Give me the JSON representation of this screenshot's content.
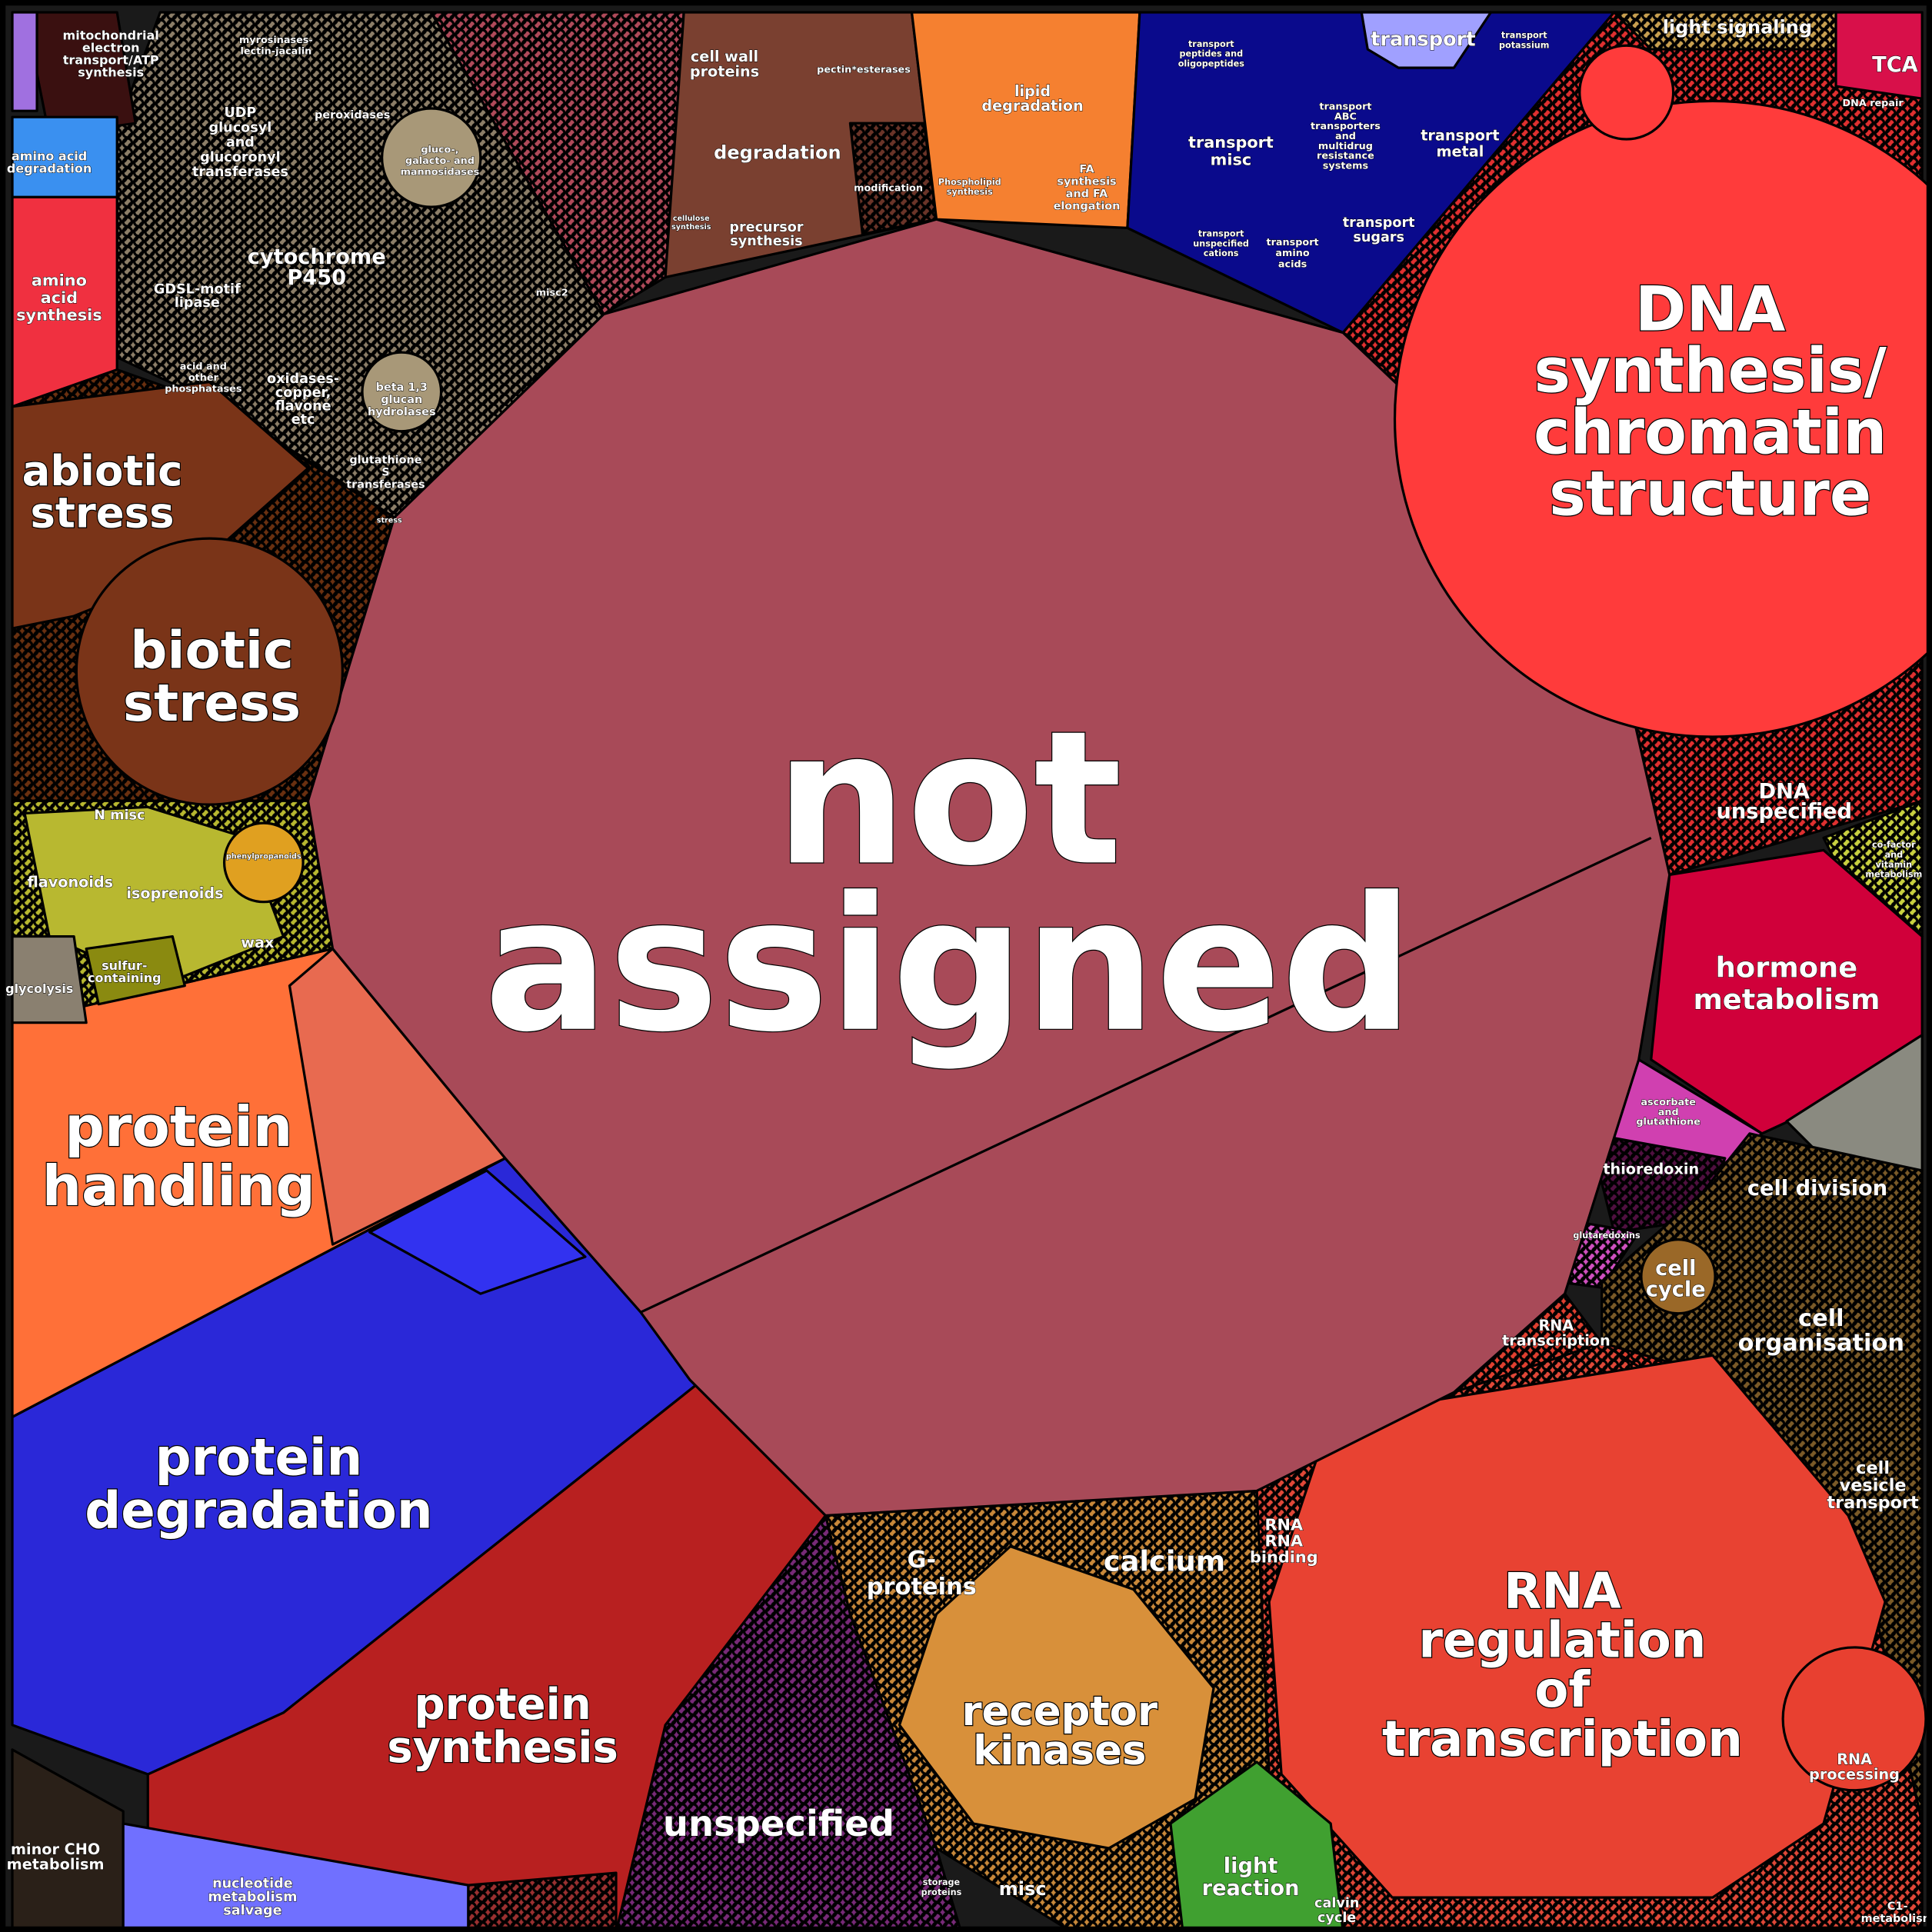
{
  "title": "Voronoi treemap of functional categories",
  "cells": [
    {
      "lines": [
        "not",
        "assigned"
      ]
    },
    {
      "lines": [
        "DNA",
        "synthesis/",
        "chromatin",
        "structure"
      ]
    },
    {
      "lines": [
        "DNA",
        "unspecified"
      ]
    },
    {
      "lines": [
        "hormone",
        "metabolism"
      ]
    },
    {
      "lines": [
        "cell division"
      ]
    },
    {
      "lines": [
        "cell",
        "cycle"
      ]
    },
    {
      "lines": [
        "cell",
        "organisation"
      ]
    },
    {
      "lines": [
        "cell",
        "vesicle",
        "transport"
      ]
    },
    {
      "lines": [
        "RNA",
        "regulation",
        "of",
        "transcription"
      ]
    },
    {
      "lines": [
        "RNA",
        "transcription"
      ]
    },
    {
      "lines": [
        "RNA",
        "RNA",
        "binding"
      ]
    },
    {
      "lines": [
        "RNA",
        "processing"
      ]
    },
    {
      "lines": [
        "receptor",
        "kinases"
      ]
    },
    {
      "lines": [
        "calcium"
      ]
    },
    {
      "lines": [
        "G-",
        "proteins"
      ]
    },
    {
      "lines": [
        "unspecified"
      ]
    },
    {
      "lines": [
        "misc"
      ]
    },
    {
      "lines": [
        "light",
        "reaction"
      ]
    },
    {
      "lines": [
        "calvin",
        "cycle"
      ]
    },
    {
      "lines": [
        "protein",
        "synthesis"
      ]
    },
    {
      "lines": [
        "protein",
        "degradation"
      ]
    },
    {
      "lines": [
        "protein",
        "handling"
      ]
    },
    {
      "lines": [
        "minor CHO",
        "metabolism"
      ]
    },
    {
      "lines": [
        "nucleotide",
        "metabolism",
        "salvage"
      ]
    },
    {
      "lines": [
        "flavonoids"
      ]
    },
    {
      "lines": [
        "isoprenoids"
      ]
    },
    {
      "lines": [
        "N misc"
      ]
    },
    {
      "lines": [
        "wax"
      ]
    },
    {
      "lines": [
        "sulfur-",
        "containing"
      ]
    },
    {
      "lines": [
        "phenylpropanoids"
      ]
    },
    {
      "lines": [
        "glycolysis"
      ]
    },
    {
      "lines": [
        "biotic",
        "stress"
      ]
    },
    {
      "lines": [
        "abiotic",
        "stress"
      ]
    },
    {
      "lines": [
        "amino",
        "acid",
        "synthesis"
      ]
    },
    {
      "lines": [
        "amino acid",
        "degradation"
      ]
    },
    {
      "lines": [
        "mitochondrial",
        "electron",
        "transport/ATP",
        "synthesis"
      ]
    },
    {
      "lines": [
        "cytochrome",
        "P450"
      ]
    },
    {
      "lines": [
        "UDP",
        "glucosyl",
        "and",
        "glucoronyl",
        "transferases"
      ]
    },
    {
      "lines": [
        "peroxidases"
      ]
    },
    {
      "lines": [
        "GDSL-motif",
        "lipase"
      ]
    },
    {
      "lines": [
        "oxidases-",
        "copper,",
        "flavone",
        "etc"
      ]
    },
    {
      "lines": [
        "glutathione",
        "S",
        "transferases"
      ]
    },
    {
      "lines": [
        "beta 1,3",
        "glucan",
        "hydrolases"
      ]
    },
    {
      "lines": [
        "myrosinases-",
        "lectin-jacalin"
      ]
    },
    {
      "lines": [
        "gluco-,",
        "galacto- and",
        "mannosidases"
      ]
    },
    {
      "lines": [
        "acid and",
        "other",
        "phosphatases"
      ]
    },
    {
      "lines": [
        "cell wall",
        "proteins"
      ]
    },
    {
      "lines": [
        "degradation"
      ]
    },
    {
      "lines": [
        "precursor",
        "synthesis"
      ]
    },
    {
      "lines": [
        "modification"
      ]
    },
    {
      "lines": [
        "pectin*esterases"
      ]
    },
    {
      "lines": [
        "cellulose",
        "synthesis"
      ]
    },
    {
      "lines": [
        "lipid",
        "degradation"
      ]
    },
    {
      "lines": [
        "FA",
        "synthesis",
        "and FA",
        "elongation"
      ]
    },
    {
      "lines": [
        "Phospholipid",
        "synthesis"
      ]
    },
    {
      "lines": [
        "transport"
      ]
    },
    {
      "lines": [
        "transport",
        "misc"
      ]
    },
    {
      "lines": [
        "transport",
        "metal"
      ]
    },
    {
      "lines": [
        "transport",
        "sugars"
      ]
    },
    {
      "lines": [
        "transport",
        "ABC",
        "transporters",
        "and",
        "multidrug",
        "resistance",
        "systems"
      ]
    },
    {
      "lines": [
        "transport",
        "amino",
        "acids"
      ]
    },
    {
      "lines": [
        "transport",
        "unspecified",
        "cations"
      ]
    },
    {
      "lines": [
        "transport",
        "potassium"
      ]
    },
    {
      "lines": [
        "transport",
        "peptides and",
        "oligopeptides"
      ]
    },
    {
      "lines": [
        "light signaling"
      ]
    },
    {
      "lines": [
        "TCA"
      ]
    },
    {
      "lines": [
        "DNA repair"
      ]
    },
    {
      "lines": [
        "thioredoxin"
      ]
    },
    {
      "lines": [
        "ascorbate",
        "and",
        "glutathione"
      ]
    },
    {
      "lines": [
        "glutaredoxins"
      ]
    },
    {
      "lines": [
        "co-factor",
        "and",
        "vitamin",
        "metabolism"
      ]
    },
    {
      "lines": [
        "C1-",
        "metabolism"
      ]
    },
    {
      "lines": [
        "storage",
        "proteins"
      ]
    },
    {
      "lines": [
        "misc2"
      ]
    },
    {
      "lines": [
        "stress"
      ]
    }
  ]
}
